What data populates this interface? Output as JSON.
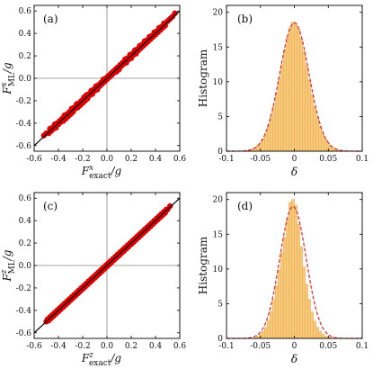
{
  "colors": {
    "scatter": "#dd0000",
    "diagonal": "#000000",
    "zero_lines": "#888888",
    "bar_fill": "#f7c97a",
    "bar_edge": "#e7a84c",
    "fit_line": "#e3262a"
  },
  "chart_data": [
    {
      "type": "scatter",
      "panel_label": "(a)",
      "xlabel_main": "F",
      "xlabel_sup": "x",
      "xlabel_sub": "exact",
      "xlabel_tail": "/g",
      "ylabel_main": "F",
      "ylabel_sup": "x",
      "ylabel_sub": "ML",
      "ylabel_tail": "/g",
      "xlim": [
        -0.6,
        0.6
      ],
      "ylim": [
        -0.65,
        0.65
      ],
      "xticks": [
        "-0.6",
        "-0.4",
        "-0.2",
        "0.0",
        "0.2",
        "0.4",
        "0.6"
      ],
      "xtick_values": [
        -0.6,
        -0.4,
        -0.2,
        0.0,
        0.2,
        0.4,
        0.6
      ],
      "yticks": [
        "-0.6",
        "-0.4",
        "-0.2",
        "0.0",
        "0.2",
        "0.4",
        "0.6"
      ],
      "ytick_values": [
        -0.6,
        -0.4,
        -0.2,
        0.0,
        0.2,
        0.4,
        0.6
      ],
      "diagonal": [
        [
          -0.62,
          -0.62
        ],
        [
          0.62,
          0.62
        ]
      ],
      "points": [
        [
          -0.52,
          -0.51
        ],
        [
          -0.5,
          -0.49
        ],
        [
          -0.48,
          -0.49
        ],
        [
          -0.47,
          -0.45
        ],
        [
          -0.46,
          -0.47
        ],
        [
          -0.45,
          -0.44
        ],
        [
          -0.44,
          -0.45
        ],
        [
          -0.43,
          -0.41
        ],
        [
          -0.42,
          -0.44
        ],
        [
          -0.41,
          -0.4
        ],
        [
          -0.4,
          -0.41
        ],
        [
          -0.39,
          -0.38
        ],
        [
          -0.38,
          -0.39
        ],
        [
          -0.37,
          -0.36
        ],
        [
          -0.36,
          -0.38
        ],
        [
          -0.35,
          -0.33
        ],
        [
          -0.34,
          -0.36
        ],
        [
          -0.33,
          -0.32
        ],
        [
          -0.32,
          -0.34
        ],
        [
          -0.31,
          -0.3
        ],
        [
          -0.3,
          -0.32
        ],
        [
          -0.29,
          -0.27
        ],
        [
          -0.28,
          -0.3
        ],
        [
          -0.27,
          -0.26
        ],
        [
          -0.26,
          -0.27
        ],
        [
          -0.25,
          -0.23
        ],
        [
          -0.24,
          -0.26
        ],
        [
          -0.23,
          -0.22
        ],
        [
          -0.22,
          -0.24
        ],
        [
          -0.21,
          -0.2
        ],
        [
          -0.2,
          -0.22
        ],
        [
          -0.19,
          -0.17
        ],
        [
          -0.18,
          -0.2
        ],
        [
          -0.17,
          -0.15
        ],
        [
          -0.16,
          -0.18
        ],
        [
          -0.15,
          -0.14
        ],
        [
          -0.14,
          -0.15
        ],
        [
          -0.13,
          -0.11
        ],
        [
          -0.12,
          -0.14
        ],
        [
          -0.11,
          -0.1
        ],
        [
          -0.1,
          -0.11
        ],
        [
          -0.09,
          -0.07
        ],
        [
          -0.08,
          -0.1
        ],
        [
          -0.07,
          -0.06
        ],
        [
          -0.06,
          -0.07
        ],
        [
          -0.05,
          -0.04
        ],
        [
          -0.04,
          -0.05
        ],
        [
          -0.03,
          -0.01
        ],
        [
          -0.02,
          -0.03
        ],
        [
          -0.01,
          0.0
        ],
        [
          0.0,
          -0.01
        ],
        [
          0.01,
          0.02
        ],
        [
          0.02,
          0.01
        ],
        [
          0.03,
          0.04
        ],
        [
          0.04,
          0.03
        ],
        [
          0.05,
          0.06
        ],
        [
          0.06,
          0.05
        ],
        [
          0.07,
          0.08
        ],
        [
          0.08,
          0.06
        ],
        [
          0.09,
          0.1
        ],
        [
          0.1,
          0.08
        ],
        [
          0.11,
          0.12
        ],
        [
          0.12,
          0.11
        ],
        [
          0.13,
          0.14
        ],
        [
          0.14,
          0.13
        ],
        [
          0.15,
          0.17
        ],
        [
          0.16,
          0.14
        ],
        [
          0.17,
          0.18
        ],
        [
          0.18,
          0.17
        ],
        [
          0.19,
          0.21
        ],
        [
          0.2,
          0.18
        ],
        [
          0.21,
          0.22
        ],
        [
          0.22,
          0.21
        ],
        [
          0.23,
          0.25
        ],
        [
          0.24,
          0.22
        ],
        [
          0.25,
          0.26
        ],
        [
          0.26,
          0.25
        ],
        [
          0.27,
          0.29
        ],
        [
          0.28,
          0.27
        ],
        [
          0.29,
          0.3
        ],
        [
          0.3,
          0.29
        ],
        [
          0.31,
          0.33
        ],
        [
          0.32,
          0.31
        ],
        [
          0.33,
          0.34
        ],
        [
          0.34,
          0.33
        ],
        [
          0.35,
          0.37
        ],
        [
          0.36,
          0.35
        ],
        [
          0.37,
          0.38
        ],
        [
          0.38,
          0.37
        ],
        [
          0.39,
          0.41
        ],
        [
          0.4,
          0.39
        ],
        [
          0.41,
          0.42
        ],
        [
          0.42,
          0.41
        ],
        [
          0.43,
          0.45
        ],
        [
          0.44,
          0.43
        ],
        [
          0.45,
          0.46
        ],
        [
          0.46,
          0.45
        ],
        [
          0.47,
          0.49
        ],
        [
          0.48,
          0.47
        ],
        [
          0.5,
          0.51
        ],
        [
          0.52,
          0.53
        ],
        [
          0.54,
          0.55
        ],
        [
          0.56,
          0.58
        ]
      ]
    },
    {
      "type": "bar",
      "panel_label": "(b)",
      "xlabel": "δ",
      "ylabel": "Histogram",
      "xlim": [
        -0.1,
        0.1
      ],
      "ylim": [
        0,
        21
      ],
      "xticks": [
        "-0.1",
        "-0.05",
        "0",
        "0.05",
        "0.1"
      ],
      "xtick_values": [
        -0.1,
        -0.05,
        0,
        0.05,
        0.1
      ],
      "yticks": [
        "0",
        "5",
        "10",
        "15",
        "20"
      ],
      "ytick_values": [
        0,
        5,
        10,
        15,
        20
      ],
      "bin_width": 0.004,
      "bin_centers": [
        -0.07,
        -0.066,
        -0.062,
        -0.058,
        -0.054,
        -0.05,
        -0.046,
        -0.042,
        -0.038,
        -0.034,
        -0.03,
        -0.026,
        -0.022,
        -0.018,
        -0.014,
        -0.01,
        -0.006,
        -0.002,
        0.002,
        0.006,
        0.01,
        0.014,
        0.018,
        0.022,
        0.026,
        0.03,
        0.034,
        0.038,
        0.042,
        0.046,
        0.05,
        0.054,
        0.058,
        0.062,
        0.066
      ],
      "values": [
        0.1,
        0.2,
        0.3,
        0.5,
        0.8,
        1.2,
        1.8,
        2.6,
        3.7,
        5.0,
        6.5,
        8.4,
        10.4,
        12.5,
        14.6,
        16.4,
        17.8,
        18.6,
        18.4,
        17.6,
        16.2,
        14.4,
        12.3,
        10.2,
        8.2,
        6.4,
        4.9,
        3.6,
        2.5,
        1.7,
        1.1,
        0.7,
        0.4,
        0.2,
        0.1
      ],
      "fit": {
        "amplitude": 18.5,
        "mean": 0.0,
        "sigma": 0.0215
      }
    },
    {
      "type": "scatter",
      "panel_label": "(c)",
      "xlabel_main": "F",
      "xlabel_sup": "z",
      "xlabel_sub": "exact",
      "xlabel_tail": "/g",
      "ylabel_main": "F",
      "ylabel_sup": "z",
      "ylabel_sub": "ML",
      "ylabel_tail": "/g",
      "xlim": [
        -0.6,
        0.6
      ],
      "ylim": [
        -0.65,
        0.65
      ],
      "xticks": [
        "-0.6",
        "-0.4",
        "-0.2",
        "0.0",
        "0.2",
        "0.4",
        "0.6"
      ],
      "xtick_values": [
        -0.6,
        -0.4,
        -0.2,
        0.0,
        0.2,
        0.4,
        0.6
      ],
      "yticks": [
        "-0.6",
        "-0.4",
        "-0.2",
        "0.0",
        "0.2",
        "0.4",
        "0.6"
      ],
      "ytick_values": [
        -0.6,
        -0.4,
        -0.2,
        0.0,
        0.2,
        0.4,
        0.6
      ],
      "diagonal": [
        [
          -0.62,
          -0.62
        ],
        [
          0.62,
          0.62
        ]
      ],
      "points": [
        [
          -0.5,
          -0.5
        ],
        [
          -0.49,
          -0.48
        ],
        [
          -0.48,
          -0.49
        ],
        [
          -0.47,
          -0.46
        ],
        [
          -0.46,
          -0.47
        ],
        [
          -0.45,
          -0.44
        ],
        [
          -0.44,
          -0.45
        ],
        [
          -0.43,
          -0.42
        ],
        [
          -0.42,
          -0.43
        ],
        [
          -0.41,
          -0.4
        ],
        [
          -0.4,
          -0.41
        ],
        [
          -0.39,
          -0.38
        ],
        [
          -0.38,
          -0.39
        ],
        [
          -0.37,
          -0.36
        ],
        [
          -0.36,
          -0.37
        ],
        [
          -0.35,
          -0.34
        ],
        [
          -0.34,
          -0.35
        ],
        [
          -0.33,
          -0.32
        ],
        [
          -0.32,
          -0.33
        ],
        [
          -0.31,
          -0.3
        ],
        [
          -0.3,
          -0.31
        ],
        [
          -0.29,
          -0.28
        ],
        [
          -0.28,
          -0.29
        ],
        [
          -0.27,
          -0.26
        ],
        [
          -0.26,
          -0.27
        ],
        [
          -0.25,
          -0.24
        ],
        [
          -0.24,
          -0.25
        ],
        [
          -0.23,
          -0.22
        ],
        [
          -0.22,
          -0.23
        ],
        [
          -0.21,
          -0.2
        ],
        [
          -0.2,
          -0.21
        ],
        [
          -0.19,
          -0.18
        ],
        [
          -0.18,
          -0.19
        ],
        [
          -0.17,
          -0.16
        ],
        [
          -0.16,
          -0.17
        ],
        [
          -0.15,
          -0.14
        ],
        [
          -0.14,
          -0.15
        ],
        [
          -0.13,
          -0.12
        ],
        [
          -0.12,
          -0.13
        ],
        [
          -0.11,
          -0.1
        ],
        [
          -0.1,
          -0.11
        ],
        [
          -0.09,
          -0.08
        ],
        [
          -0.08,
          -0.09
        ],
        [
          -0.07,
          -0.06
        ],
        [
          -0.06,
          -0.07
        ],
        [
          -0.05,
          -0.04
        ],
        [
          -0.04,
          -0.05
        ],
        [
          -0.03,
          -0.02
        ],
        [
          -0.02,
          -0.03
        ],
        [
          -0.01,
          0.0
        ],
        [
          0.0,
          -0.01
        ],
        [
          0.01,
          0.02
        ],
        [
          0.02,
          0.01
        ],
        [
          0.03,
          0.04
        ],
        [
          0.04,
          0.03
        ],
        [
          0.05,
          0.06
        ],
        [
          0.06,
          0.05
        ],
        [
          0.07,
          0.08
        ],
        [
          0.08,
          0.07
        ],
        [
          0.09,
          0.1
        ],
        [
          0.1,
          0.09
        ],
        [
          0.11,
          0.12
        ],
        [
          0.12,
          0.11
        ],
        [
          0.13,
          0.14
        ],
        [
          0.14,
          0.13
        ],
        [
          0.15,
          0.16
        ],
        [
          0.16,
          0.15
        ],
        [
          0.17,
          0.18
        ],
        [
          0.18,
          0.17
        ],
        [
          0.19,
          0.2
        ],
        [
          0.2,
          0.19
        ],
        [
          0.21,
          0.22
        ],
        [
          0.22,
          0.21
        ],
        [
          0.23,
          0.24
        ],
        [
          0.24,
          0.23
        ],
        [
          0.25,
          0.26
        ],
        [
          0.26,
          0.25
        ],
        [
          0.27,
          0.28
        ],
        [
          0.28,
          0.27
        ],
        [
          0.29,
          0.3
        ],
        [
          0.3,
          0.29
        ],
        [
          0.31,
          0.32
        ],
        [
          0.32,
          0.31
        ],
        [
          0.33,
          0.34
        ],
        [
          0.34,
          0.33
        ],
        [
          0.35,
          0.36
        ],
        [
          0.36,
          0.35
        ],
        [
          0.37,
          0.38
        ],
        [
          0.38,
          0.37
        ],
        [
          0.39,
          0.4
        ],
        [
          0.4,
          0.39
        ],
        [
          0.41,
          0.42
        ],
        [
          0.42,
          0.41
        ],
        [
          0.43,
          0.44
        ],
        [
          0.44,
          0.43
        ],
        [
          0.45,
          0.46
        ],
        [
          0.46,
          0.45
        ],
        [
          0.47,
          0.48
        ],
        [
          0.48,
          0.47
        ],
        [
          0.49,
          0.5
        ],
        [
          0.5,
          0.5
        ],
        [
          0.52,
          0.53
        ]
      ]
    },
    {
      "type": "bar",
      "panel_label": "(d)",
      "xlabel": "δ",
      "ylabel": "Histogram",
      "xlim": [
        -0.1,
        0.1
      ],
      "ylim": [
        0,
        21
      ],
      "xticks": [
        "-0.1",
        "-0.05",
        "0",
        "0.05",
        "0.1"
      ],
      "xtick_values": [
        -0.1,
        -0.05,
        0,
        0.05,
        0.1
      ],
      "yticks": [
        "0",
        "5",
        "10",
        "15",
        "20"
      ],
      "ytick_values": [
        0,
        5,
        10,
        15,
        20
      ],
      "bin_width": 0.004,
      "bin_centers": [
        -0.058,
        -0.054,
        -0.05,
        -0.046,
        -0.042,
        -0.038,
        -0.034,
        -0.03,
        -0.026,
        -0.022,
        -0.018,
        -0.014,
        -0.01,
        -0.006,
        -0.002,
        0.002,
        0.006,
        0.01,
        0.014,
        0.018,
        0.022,
        0.026,
        0.03,
        0.034,
        0.038,
        0.042,
        0.046,
        0.05,
        0.054
      ],
      "values": [
        0.1,
        0.3,
        0.6,
        1.0,
        1.6,
        2.6,
        3.9,
        5.6,
        7.6,
        9.9,
        12.4,
        14.6,
        17.2,
        19.6,
        20.0,
        19.2,
        16.4,
        13.2,
        10.3,
        7.8,
        5.6,
        3.8,
        2.5,
        1.6,
        1.0,
        0.6,
        0.3,
        0.2,
        0.1
      ],
      "fit": {
        "amplitude": 19.0,
        "mean": -0.002,
        "sigma": 0.0195
      }
    }
  ]
}
